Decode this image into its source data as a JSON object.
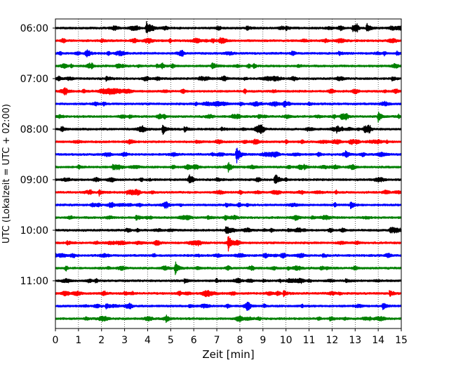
{
  "chart_data": {
    "type": "line",
    "xlabel": "Zeit  [min]",
    "ylabel": "UTC (Lokalzeit = UTC + 02:00)",
    "xlim": [
      0,
      15
    ],
    "x_ticks": [
      0,
      1,
      2,
      3,
      4,
      5,
      6,
      7,
      8,
      9,
      10,
      11,
      12,
      13,
      14,
      15
    ],
    "y_tick_labels": [
      "06:00",
      "07:00",
      "08:00",
      "09:00",
      "10:00",
      "11:00"
    ],
    "y_tick_rows": [
      0,
      4,
      8,
      12,
      16,
      20
    ],
    "grid": "vertical-dotted",
    "trace_colors": [
      "#000000",
      "#ff0000",
      "#0000ff",
      "#008000"
    ],
    "traces": [
      {
        "start": "06:00",
        "events": [
          {
            "t": 3.95,
            "a": 1.0
          },
          {
            "t": 13.5,
            "a": 0.7
          },
          {
            "t": 12.9,
            "a": 0.4
          },
          {
            "t": 8.3,
            "a": 0.35
          },
          {
            "t": 10.0,
            "a": 0.3
          }
        ]
      },
      {
        "start": "06:15",
        "events": [
          {
            "t": 12.4,
            "a": 0.3
          },
          {
            "t": 2.0,
            "a": 0.25
          }
        ]
      },
      {
        "start": "06:30",
        "events": [
          {
            "t": 14.8,
            "a": 0.3
          },
          {
            "t": 12.3,
            "a": 0.28
          }
        ]
      },
      {
        "start": "06:45",
        "events": [
          {
            "t": 6.8,
            "a": 0.5
          },
          {
            "t": 4.4,
            "a": 0.25
          },
          {
            "t": 10.5,
            "a": 0.2
          }
        ]
      },
      {
        "start": "07:00",
        "events": [
          {
            "t": 2.2,
            "a": 0.35
          },
          {
            "t": 14.6,
            "a": 0.35
          }
        ]
      },
      {
        "start": "07:15",
        "events": [
          {
            "t": 0.4,
            "a": 0.45
          },
          {
            "t": 1.2,
            "a": 0.25
          }
        ]
      },
      {
        "start": "07:30",
        "events": [
          {
            "t": 7.3,
            "a": 0.2
          },
          {
            "t": 11.0,
            "a": 0.2
          }
        ]
      },
      {
        "start": "07:45",
        "events": [
          {
            "t": 14.0,
            "a": 0.8
          },
          {
            "t": 8.8,
            "a": 0.3
          },
          {
            "t": 12.4,
            "a": 0.3
          },
          {
            "t": 3.2,
            "a": 0.2
          }
        ]
      },
      {
        "start": "08:00",
        "events": [
          {
            "t": 4.65,
            "a": 0.85
          },
          {
            "t": 12.2,
            "a": 0.6
          },
          {
            "t": 0.25,
            "a": 0.45
          },
          {
            "t": 5.6,
            "a": 0.35
          },
          {
            "t": 13.4,
            "a": 0.3
          },
          {
            "t": 7.2,
            "a": 0.3
          }
        ]
      },
      {
        "start": "08:15",
        "events": [
          {
            "t": 3.2,
            "a": 0.3
          },
          {
            "t": 6.1,
            "a": 0.25
          }
        ]
      },
      {
        "start": "08:30",
        "events": [
          {
            "t": 7.85,
            "a": 1.4
          },
          {
            "t": 12.6,
            "a": 0.4
          }
        ]
      },
      {
        "start": "08:45",
        "events": [
          {
            "t": 7.5,
            "a": 0.45
          },
          {
            "t": 2.5,
            "a": 0.35
          },
          {
            "t": 10.8,
            "a": 0.3
          },
          {
            "t": 1.0,
            "a": 0.3
          }
        ]
      },
      {
        "start": "09:00",
        "events": [
          {
            "t": 9.5,
            "a": 0.3
          },
          {
            "t": 5.8,
            "a": 0.25
          },
          {
            "t": 7.0,
            "a": 0.25
          }
        ]
      },
      {
        "start": "09:15",
        "events": [
          {
            "t": 1.9,
            "a": 0.45
          },
          {
            "t": 3.1,
            "a": 0.25
          }
        ]
      },
      {
        "start": "09:30",
        "events": [
          {
            "t": 12.8,
            "a": 0.6
          },
          {
            "t": 7.4,
            "a": 0.3
          }
        ]
      },
      {
        "start": "09:45",
        "events": [
          {
            "t": 3.5,
            "a": 0.45
          },
          {
            "t": 6.6,
            "a": 0.25
          }
        ]
      },
      {
        "start": "10:00",
        "events": [
          {
            "t": 7.4,
            "a": 0.55
          },
          {
            "t": 14.5,
            "a": 0.25
          },
          {
            "t": 10.1,
            "a": 0.2
          }
        ]
      },
      {
        "start": "10:15",
        "events": [
          {
            "t": 7.5,
            "a": 1.1
          },
          {
            "t": 0.5,
            "a": 0.3
          }
        ]
      },
      {
        "start": "10:30",
        "events": [
          {
            "t": 9.1,
            "a": 0.3
          },
          {
            "t": 11.6,
            "a": 0.25
          }
        ]
      },
      {
        "start": "10:45",
        "events": [
          {
            "t": 5.2,
            "a": 0.75
          },
          {
            "t": 11.5,
            "a": 0.3
          }
        ]
      },
      {
        "start": "11:00",
        "events": [
          {
            "t": 5.6,
            "a": 0.3
          },
          {
            "t": 12.6,
            "a": 0.25
          }
        ]
      },
      {
        "start": "11:15",
        "events": [
          {
            "t": 14.5,
            "a": 0.5
          },
          {
            "t": 9.9,
            "a": 0.4
          },
          {
            "t": 3.0,
            "a": 0.25
          }
        ]
      },
      {
        "start": "11:30",
        "events": [
          {
            "t": 14.2,
            "a": 0.5
          },
          {
            "t": 2.2,
            "a": 0.4
          },
          {
            "t": 5.8,
            "a": 0.25
          }
        ]
      },
      {
        "start": "11:45",
        "events": [
          {
            "t": 4.8,
            "a": 0.35
          },
          {
            "t": 8.0,
            "a": 0.25
          },
          {
            "t": 11.9,
            "a": 0.3
          }
        ]
      }
    ]
  }
}
